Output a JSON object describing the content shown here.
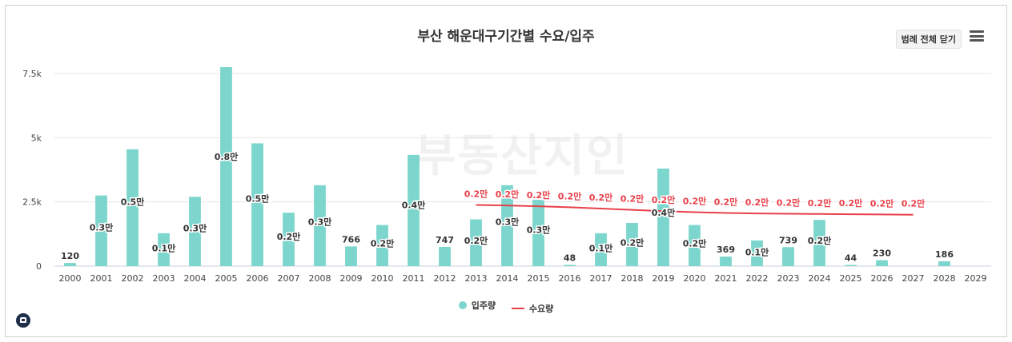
{
  "page": {
    "title": "부산 해운대구기간별 수요/입주",
    "legend_toggle": "범례 전체 닫기",
    "menu_icon": "hamburger-menu-icon",
    "logo_icon": "house-logo-icon",
    "watermark": "부동산지인"
  },
  "colors": {
    "bar": "#7dd6cd",
    "line": "#e8404a",
    "grid": "#e6e6e6"
  },
  "chart_data": {
    "type": "bar",
    "title": "부산 해운대구기간별 수요/입주",
    "categories": [
      "2000",
      "2001",
      "2002",
      "2003",
      "2004",
      "2005",
      "2006",
      "2007",
      "2008",
      "2009",
      "2010",
      "2011",
      "2012",
      "2013",
      "2014",
      "2015",
      "2016",
      "2017",
      "2018",
      "2019",
      "2020",
      "2021",
      "2022",
      "2023",
      "2024",
      "2025",
      "2026",
      "2027",
      "2028",
      "2029"
    ],
    "ylim": [
      0,
      7750
    ],
    "yticks": [
      {
        "value": 0,
        "label": "0"
      },
      {
        "value": 2500,
        "label": "2.5k"
      },
      {
        "value": 5000,
        "label": "5k"
      },
      {
        "value": 7500,
        "label": "7.5k"
      }
    ],
    "grid": true,
    "legend_position": "bottom",
    "series": [
      {
        "name": "입주량",
        "type": "bar",
        "values": [
          120,
          2750,
          4550,
          1280,
          2700,
          7750,
          4780,
          2080,
          3150,
          766,
          1600,
          4330,
          747,
          1820,
          3150,
          2580,
          48,
          1280,
          1680,
          3800,
          1600,
          369,
          1000,
          739,
          1800,
          44,
          230,
          0,
          186,
          0
        ],
        "labels": [
          "120",
          "0.3만",
          "0.5만",
          "0.1만",
          "0.3만",
          "0.8만",
          "0.5만",
          "0.2만",
          "0.3만",
          "766",
          "0.2만",
          "0.4만",
          "747",
          "0.2만",
          "0.3만",
          "0.3만",
          "48",
          "0.1만",
          "0.2만",
          "0.4만",
          "0.2만",
          "369",
          "0.1만",
          "739",
          "0.2만",
          "44",
          "230",
          "",
          "186",
          ""
        ]
      },
      {
        "name": "수요량",
        "type": "line",
        "values": [
          null,
          null,
          null,
          null,
          null,
          null,
          null,
          null,
          null,
          null,
          null,
          null,
          null,
          2380,
          2360,
          2330,
          2290,
          2240,
          2190,
          2140,
          2100,
          2070,
          2050,
          2040,
          2030,
          2020,
          2010,
          2000,
          null,
          null
        ],
        "labels": [
          "",
          "",
          "",
          "",
          "",
          "",
          "",
          "",
          "",
          "",
          "",
          "",
          "",
          "0.2만",
          "0.2만",
          "0.2만",
          "0.2만",
          "0.2만",
          "0.2만",
          "0.2만",
          "0.2만",
          "0.2만",
          "0.2만",
          "0.2만",
          "0.2만",
          "0.2만",
          "0.2만",
          "0.2만",
          "",
          ""
        ]
      }
    ]
  }
}
